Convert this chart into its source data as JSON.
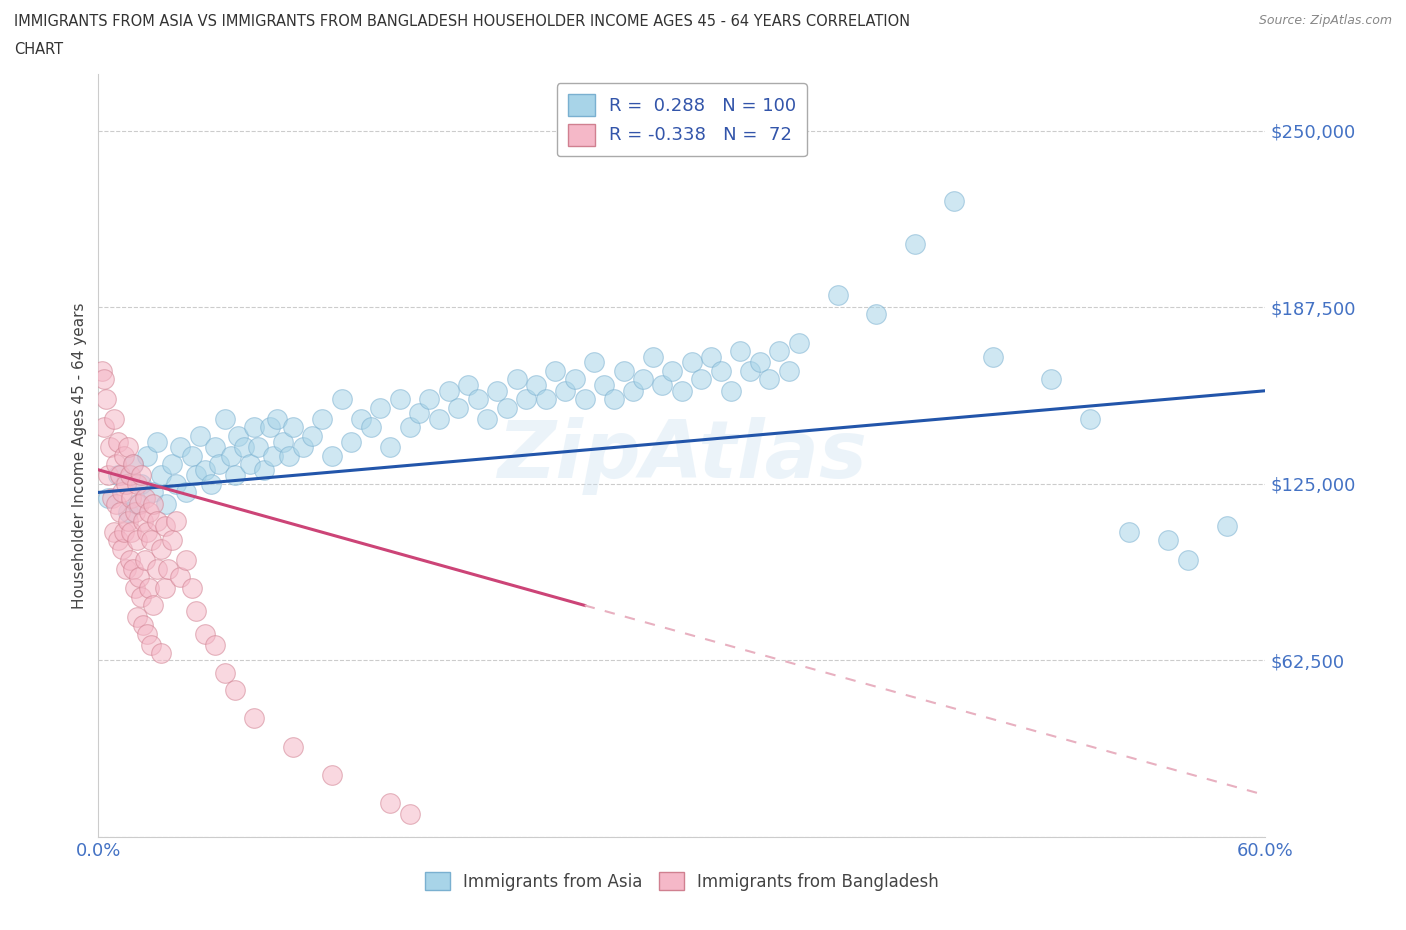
{
  "title_line1": "IMMIGRANTS FROM ASIA VS IMMIGRANTS FROM BANGLADESH HOUSEHOLDER INCOME AGES 45 - 64 YEARS CORRELATION",
  "title_line2": "CHART",
  "source": "Source: ZipAtlas.com",
  "ylabel": "Householder Income Ages 45 - 64 years",
  "xlim": [
    0.0,
    0.6
  ],
  "ylim": [
    0,
    270000
  ],
  "yticks": [
    0,
    62500,
    125000,
    187500,
    250000
  ],
  "ytick_labels": [
    "",
    "$62,500",
    "$125,000",
    "$187,500",
    "$250,000"
  ],
  "xticks": [
    0.0,
    0.1,
    0.2,
    0.3,
    0.4,
    0.5,
    0.6
  ],
  "xtick_labels": [
    "0.0%",
    "",
    "",
    "",
    "",
    "",
    "60.0%"
  ],
  "asia_color": "#a8d4e8",
  "asia_edge": "#7ab0d0",
  "bangladesh_color": "#f5b8c8",
  "bangladesh_edge": "#d08090",
  "regression_asia_color": "#2255aa",
  "regression_bangladesh_color": "#cc4477",
  "regression_dashed_color": "#e8b0c0",
  "R_asia": 0.288,
  "N_asia": 100,
  "R_bangladesh": -0.338,
  "N_bangladesh": 72,
  "watermark": "ZipAtlas",
  "asia_scatter": [
    [
      0.005,
      120000
    ],
    [
      0.01,
      128000
    ],
    [
      0.015,
      115000
    ],
    [
      0.018,
      132000
    ],
    [
      0.02,
      118000
    ],
    [
      0.022,
      125000
    ],
    [
      0.025,
      135000
    ],
    [
      0.028,
      122000
    ],
    [
      0.03,
      140000
    ],
    [
      0.032,
      128000
    ],
    [
      0.035,
      118000
    ],
    [
      0.038,
      132000
    ],
    [
      0.04,
      125000
    ],
    [
      0.042,
      138000
    ],
    [
      0.045,
      122000
    ],
    [
      0.048,
      135000
    ],
    [
      0.05,
      128000
    ],
    [
      0.052,
      142000
    ],
    [
      0.055,
      130000
    ],
    [
      0.058,
      125000
    ],
    [
      0.06,
      138000
    ],
    [
      0.062,
      132000
    ],
    [
      0.065,
      148000
    ],
    [
      0.068,
      135000
    ],
    [
      0.07,
      128000
    ],
    [
      0.072,
      142000
    ],
    [
      0.075,
      138000
    ],
    [
      0.078,
      132000
    ],
    [
      0.08,
      145000
    ],
    [
      0.082,
      138000
    ],
    [
      0.085,
      130000
    ],
    [
      0.088,
      145000
    ],
    [
      0.09,
      135000
    ],
    [
      0.092,
      148000
    ],
    [
      0.095,
      140000
    ],
    [
      0.098,
      135000
    ],
    [
      0.1,
      145000
    ],
    [
      0.105,
      138000
    ],
    [
      0.11,
      142000
    ],
    [
      0.115,
      148000
    ],
    [
      0.12,
      135000
    ],
    [
      0.125,
      155000
    ],
    [
      0.13,
      140000
    ],
    [
      0.135,
      148000
    ],
    [
      0.14,
      145000
    ],
    [
      0.145,
      152000
    ],
    [
      0.15,
      138000
    ],
    [
      0.155,
      155000
    ],
    [
      0.16,
      145000
    ],
    [
      0.165,
      150000
    ],
    [
      0.17,
      155000
    ],
    [
      0.175,
      148000
    ],
    [
      0.18,
      158000
    ],
    [
      0.185,
      152000
    ],
    [
      0.19,
      160000
    ],
    [
      0.195,
      155000
    ],
    [
      0.2,
      148000
    ],
    [
      0.205,
      158000
    ],
    [
      0.21,
      152000
    ],
    [
      0.215,
      162000
    ],
    [
      0.22,
      155000
    ],
    [
      0.225,
      160000
    ],
    [
      0.23,
      155000
    ],
    [
      0.235,
      165000
    ],
    [
      0.24,
      158000
    ],
    [
      0.245,
      162000
    ],
    [
      0.25,
      155000
    ],
    [
      0.255,
      168000
    ],
    [
      0.26,
      160000
    ],
    [
      0.265,
      155000
    ],
    [
      0.27,
      165000
    ],
    [
      0.275,
      158000
    ],
    [
      0.28,
      162000
    ],
    [
      0.285,
      170000
    ],
    [
      0.29,
      160000
    ],
    [
      0.295,
      165000
    ],
    [
      0.3,
      158000
    ],
    [
      0.305,
      168000
    ],
    [
      0.31,
      162000
    ],
    [
      0.315,
      170000
    ],
    [
      0.32,
      165000
    ],
    [
      0.325,
      158000
    ],
    [
      0.33,
      172000
    ],
    [
      0.335,
      165000
    ],
    [
      0.34,
      168000
    ],
    [
      0.345,
      162000
    ],
    [
      0.35,
      172000
    ],
    [
      0.355,
      165000
    ],
    [
      0.36,
      175000
    ],
    [
      0.38,
      192000
    ],
    [
      0.4,
      185000
    ],
    [
      0.42,
      210000
    ],
    [
      0.44,
      225000
    ],
    [
      0.46,
      170000
    ],
    [
      0.49,
      162000
    ],
    [
      0.51,
      148000
    ],
    [
      0.53,
      108000
    ],
    [
      0.55,
      105000
    ],
    [
      0.56,
      98000
    ],
    [
      0.58,
      110000
    ]
  ],
  "bangladesh_scatter": [
    [
      0.003,
      145000
    ],
    [
      0.004,
      155000
    ],
    [
      0.005,
      128000
    ],
    [
      0.006,
      138000
    ],
    [
      0.007,
      120000
    ],
    [
      0.008,
      148000
    ],
    [
      0.008,
      108000
    ],
    [
      0.009,
      132000
    ],
    [
      0.009,
      118000
    ],
    [
      0.01,
      140000
    ],
    [
      0.01,
      105000
    ],
    [
      0.011,
      128000
    ],
    [
      0.011,
      115000
    ],
    [
      0.012,
      122000
    ],
    [
      0.012,
      102000
    ],
    [
      0.013,
      135000
    ],
    [
      0.013,
      108000
    ],
    [
      0.014,
      125000
    ],
    [
      0.014,
      95000
    ],
    [
      0.015,
      138000
    ],
    [
      0.015,
      112000
    ],
    [
      0.016,
      128000
    ],
    [
      0.016,
      98000
    ],
    [
      0.017,
      120000
    ],
    [
      0.017,
      108000
    ],
    [
      0.018,
      132000
    ],
    [
      0.018,
      95000
    ],
    [
      0.019,
      115000
    ],
    [
      0.019,
      88000
    ],
    [
      0.02,
      125000
    ],
    [
      0.02,
      105000
    ],
    [
      0.02,
      78000
    ],
    [
      0.021,
      118000
    ],
    [
      0.021,
      92000
    ],
    [
      0.022,
      128000
    ],
    [
      0.022,
      85000
    ],
    [
      0.023,
      112000
    ],
    [
      0.023,
      75000
    ],
    [
      0.024,
      120000
    ],
    [
      0.024,
      98000
    ],
    [
      0.025,
      108000
    ],
    [
      0.025,
      72000
    ],
    [
      0.026,
      115000
    ],
    [
      0.026,
      88000
    ],
    [
      0.027,
      105000
    ],
    [
      0.027,
      68000
    ],
    [
      0.028,
      118000
    ],
    [
      0.028,
      82000
    ],
    [
      0.03,
      112000
    ],
    [
      0.03,
      95000
    ],
    [
      0.032,
      102000
    ],
    [
      0.032,
      65000
    ],
    [
      0.034,
      110000
    ],
    [
      0.034,
      88000
    ],
    [
      0.036,
      95000
    ],
    [
      0.038,
      105000
    ],
    [
      0.04,
      112000
    ],
    [
      0.042,
      92000
    ],
    [
      0.045,
      98000
    ],
    [
      0.048,
      88000
    ],
    [
      0.05,
      80000
    ],
    [
      0.055,
      72000
    ],
    [
      0.06,
      68000
    ],
    [
      0.065,
      58000
    ],
    [
      0.07,
      52000
    ],
    [
      0.08,
      42000
    ],
    [
      0.1,
      32000
    ],
    [
      0.12,
      22000
    ],
    [
      0.15,
      12000
    ],
    [
      0.16,
      8000
    ],
    [
      0.002,
      165000
    ],
    [
      0.003,
      162000
    ]
  ]
}
